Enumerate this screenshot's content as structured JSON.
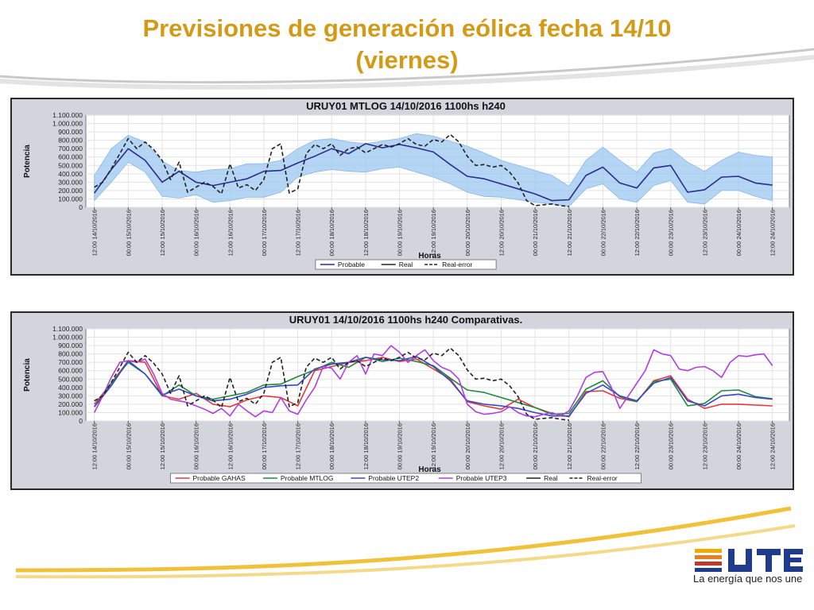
{
  "slide": {
    "title_line1": "Previsiones de generación eólica fecha 14/10",
    "title_line2": "(viernes)",
    "tagline": "La energía que nos une",
    "accent": "#d49a16"
  },
  "chart_data": [
    {
      "type": "line",
      "title": "URUY01  MTLOG  14/10/2016  1100hs    h240",
      "xlabel": "Horas",
      "ylabel": "Potencia",
      "ylim": [
        0,
        1100000
      ],
      "yticks": [
        "0",
        "100.000",
        "200.000",
        "300.000",
        "400.000",
        "500.000",
        "600.000",
        "700.000",
        "800.000",
        "900.000",
        "1.000.000",
        "1.100.000"
      ],
      "x_range_hours": [
        -3,
        246
      ],
      "xticks": [
        "12:00 14/10/2016",
        "00:00 15/10/2016",
        "12:00 15/10/2016",
        "00:00 16/10/2016",
        "12:00 16/10/2016",
        "00:00 17/10/2016",
        "12:00 17/10/2016",
        "00:00 18/10/2016",
        "12:00 18/10/2016",
        "00:00 19/10/2016",
        "12:00 19/10/2016",
        "00:00 20/10/2016",
        "12:00 20/10/2016",
        "00:00 21/10/2016",
        "12:00 21/10/2016",
        "00:00 22/10/2016",
        "12:00 22/10/2016",
        "00:00 23/10/2016",
        "12:00 23/10/2016",
        "00:00 24/10/2016",
        "12:00 24/10/2016"
      ],
      "legend": [
        "Probable",
        "Real",
        "Real-error"
      ],
      "legend_position": "bottom",
      "grid": true,
      "band": {
        "x": [
          0,
          6,
          12,
          18,
          24,
          30,
          36,
          42,
          48,
          54,
          60,
          66,
          72,
          78,
          84,
          90,
          96,
          102,
          108,
          114,
          120,
          126,
          132,
          138,
          144,
          150,
          156,
          162,
          168,
          174,
          180,
          186,
          192,
          198,
          204,
          210,
          216,
          222,
          228,
          234,
          240
        ],
        "upper": [
          380,
          700,
          860,
          780,
          550,
          440,
          420,
          450,
          460,
          520,
          520,
          560,
          700,
          800,
          820,
          780,
          760,
          790,
          820,
          880,
          850,
          790,
          730,
          650,
          560,
          500,
          440,
          380,
          250,
          560,
          720,
          560,
          420,
          650,
          700,
          540,
          430,
          560,
          660,
          620,
          600
        ],
        "lower": [
          80,
          300,
          540,
          420,
          130,
          110,
          150,
          60,
          80,
          120,
          120,
          180,
          360,
          420,
          450,
          430,
          420,
          460,
          480,
          420,
          360,
          280,
          180,
          130,
          120,
          90,
          60,
          40,
          10,
          220,
          280,
          100,
          60,
          260,
          320,
          60,
          40,
          200,
          200,
          130,
          80
        ]
      },
      "series": [
        {
          "name": "Probable",
          "color": "#2c2c8c",
          "dash": "",
          "x": [
            0,
            6,
            12,
            18,
            24,
            30,
            36,
            42,
            48,
            54,
            60,
            66,
            72,
            78,
            84,
            90,
            96,
            102,
            108,
            114,
            120,
            126,
            132,
            138,
            144,
            150,
            156,
            162,
            168,
            174,
            180,
            186,
            192,
            198,
            204,
            210,
            216,
            222,
            228,
            234,
            240
          ],
          "values": [
            170,
            450,
            700,
            560,
            300,
            430,
            300,
            260,
            300,
            340,
            430,
            440,
            530,
            610,
            700,
            640,
            760,
            710,
            750,
            710,
            660,
            510,
            370,
            340,
            280,
            220,
            160,
            80,
            90,
            380,
            480,
            290,
            230,
            470,
            500,
            180,
            210,
            360,
            370,
            290,
            265
          ]
        },
        {
          "name": "Real",
          "color": "#222222",
          "dash": "5,3",
          "x": [
            0,
            3,
            6,
            9,
            12,
            15,
            18,
            21,
            24,
            27,
            30,
            33,
            36,
            39,
            42,
            45,
            48,
            51,
            54,
            57,
            60,
            63,
            66,
            69,
            72,
            75,
            78,
            81,
            84,
            87,
            90,
            93,
            96,
            99,
            102,
            105,
            108,
            111,
            114,
            117,
            120,
            123,
            126,
            129,
            132,
            135,
            138,
            141,
            144,
            147,
            150,
            153,
            156,
            159,
            162,
            165,
            168
          ],
          "values": [
            240,
            300,
            460,
            640,
            820,
            700,
            780,
            690,
            560,
            330,
            540,
            180,
            240,
            300,
            250,
            160,
            520,
            230,
            270,
            200,
            330,
            700,
            760,
            170,
            220,
            640,
            750,
            700,
            760,
            620,
            700,
            720,
            650,
            700,
            750,
            720,
            760,
            820,
            750,
            730,
            810,
            780,
            870,
            780,
            610,
            500,
            510,
            480,
            500,
            420,
            290,
            80,
            20,
            30,
            40,
            20,
            10
          ]
        }
      ]
    },
    {
      "type": "line",
      "title": "URUY01  14/10/2016  1100hs    h240  Comparativas.",
      "xlabel": "Horas",
      "ylabel": "Potencia",
      "ylim": [
        0,
        1100000
      ],
      "yticks": [
        "0",
        "100.000",
        "200.000",
        "300.000",
        "400.000",
        "500.000",
        "600.000",
        "700.000",
        "800.000",
        "900.000",
        "1.000.000",
        "1.100.000"
      ],
      "x_range_hours": [
        -3,
        246
      ],
      "xticks": [
        "12:00 14/10/2016",
        "00:00 15/10/2016",
        "12:00 15/10/2016",
        "00:00 16/10/2016",
        "12:00 16/10/2016",
        "00:00 17/10/2016",
        "12:00 17/10/2016",
        "00:00 18/10/2016",
        "12:00 18/10/2016",
        "00:00 19/10/2016",
        "12:00 19/10/2016",
        "00:00 20/10/2016",
        "12:00 20/10/2016",
        "00:00 21/10/2016",
        "12:00 21/10/2016",
        "00:00 22/10/2016",
        "12:00 22/10/2016",
        "00:00 23/10/2016",
        "12:00 23/10/2016",
        "00:00 24/10/2016",
        "12:00 24/10/2016"
      ],
      "legend": [
        "Probable GAHAS",
        "Probable MTLOG",
        "Probable UTEP2",
        "Probable UTEP3",
        "Real",
        "Real-error"
      ],
      "legend_position": "bottom",
      "grid": true,
      "series": [
        {
          "name": "Probable GAHAS",
          "color": "#e03a3a",
          "dash": "",
          "x": [
            0,
            6,
            12,
            18,
            24,
            30,
            36,
            42,
            48,
            54,
            60,
            66,
            72,
            78,
            84,
            90,
            96,
            102,
            108,
            114,
            120,
            126,
            132,
            138,
            144,
            150,
            156,
            162,
            168,
            174,
            180,
            186,
            192,
            198,
            204,
            210,
            216,
            222,
            228,
            234,
            240
          ],
          "values": [
            200,
            450,
            720,
            700,
            300,
            260,
            330,
            200,
            170,
            250,
            300,
            280,
            180,
            600,
            650,
            700,
            720,
            760,
            710,
            740,
            620,
            500,
            230,
            180,
            140,
            260,
            160,
            90,
            50,
            350,
            360,
            270,
            230,
            480,
            540,
            260,
            150,
            200,
            200,
            190,
            180
          ]
        },
        {
          "name": "Probable MTLOG",
          "color": "#1f8a3a",
          "dash": "",
          "x": [
            0,
            6,
            12,
            18,
            24,
            30,
            36,
            42,
            48,
            54,
            60,
            66,
            72,
            78,
            84,
            90,
            96,
            102,
            108,
            114,
            120,
            126,
            132,
            138,
            144,
            150,
            156,
            162,
            168,
            174,
            180,
            186,
            192,
            198,
            204,
            210,
            216,
            222,
            228,
            234,
            240
          ],
          "values": [
            170,
            450,
            700,
            560,
            300,
            430,
            300,
            260,
            300,
            340,
            430,
            440,
            530,
            610,
            700,
            640,
            760,
            710,
            750,
            710,
            660,
            510,
            370,
            340,
            280,
            220,
            160,
            80,
            90,
            380,
            480,
            290,
            230,
            470,
            500,
            180,
            210,
            360,
            370,
            290,
            265
          ]
        },
        {
          "name": "Probable UTEP2",
          "color": "#3a46c8",
          "dash": "",
          "x": [
            0,
            6,
            12,
            18,
            24,
            30,
            36,
            42,
            48,
            54,
            60,
            66,
            72,
            78,
            84,
            90,
            96,
            102,
            108,
            114,
            120,
            126,
            132,
            138,
            144,
            150,
            156,
            162,
            168,
            174,
            180,
            186,
            192,
            198,
            204,
            210,
            216,
            222,
            228,
            234,
            240
          ],
          "values": [
            170,
            420,
            720,
            560,
            310,
            380,
            300,
            240,
            260,
            320,
            400,
            420,
            430,
            620,
            680,
            700,
            760,
            730,
            720,
            770,
            650,
            480,
            240,
            200,
            180,
            150,
            100,
            60,
            60,
            330,
            430,
            300,
            240,
            450,
            520,
            240,
            180,
            300,
            320,
            280,
            260
          ]
        },
        {
          "name": "Probable UTEP3",
          "color": "#b03ee0",
          "dash": "",
          "x": [
            0,
            3,
            6,
            9,
            12,
            15,
            18,
            21,
            24,
            27,
            30,
            33,
            36,
            39,
            42,
            45,
            48,
            51,
            54,
            57,
            60,
            63,
            66,
            69,
            72,
            75,
            78,
            81,
            84,
            87,
            90,
            93,
            96,
            99,
            102,
            105,
            108,
            111,
            114,
            117,
            120,
            123,
            126,
            129,
            132,
            135,
            138,
            141,
            144,
            147,
            150,
            153,
            156,
            159,
            162,
            165,
            168,
            171,
            174,
            177,
            180,
            183,
            186,
            189,
            192,
            195,
            198,
            201,
            204,
            207,
            210,
            213,
            216,
            219,
            222,
            225,
            228,
            231,
            234,
            237,
            240
          ],
          "values": [
            100,
            300,
            520,
            700,
            720,
            700,
            740,
            560,
            330,
            260,
            240,
            220,
            180,
            140,
            90,
            150,
            60,
            200,
            120,
            50,
            120,
            100,
            280,
            120,
            80,
            250,
            400,
            650,
            630,
            500,
            700,
            780,
            560,
            800,
            780,
            900,
            820,
            700,
            780,
            850,
            720,
            640,
            600,
            500,
            200,
            110,
            80,
            90,
            110,
            170,
            100,
            60,
            50,
            80,
            100,
            60,
            120,
            300,
            520,
            580,
            590,
            400,
            150,
            300,
            450,
            600,
            850,
            800,
            780,
            620,
            600,
            640,
            650,
            600,
            520,
            700,
            780,
            770,
            790,
            800,
            660
          ]
        },
        {
          "name": "Real",
          "color": "#222222",
          "dash": "5,3",
          "x": [
            0,
            3,
            6,
            9,
            12,
            15,
            18,
            21,
            24,
            27,
            30,
            33,
            36,
            39,
            42,
            45,
            48,
            51,
            54,
            57,
            60,
            63,
            66,
            69,
            72,
            75,
            78,
            81,
            84,
            87,
            90,
            93,
            96,
            99,
            102,
            105,
            108,
            111,
            114,
            117,
            120,
            123,
            126,
            129,
            132,
            135,
            138,
            141,
            144,
            147,
            150,
            153,
            156,
            159,
            162,
            165,
            168
          ],
          "values": [
            240,
            300,
            460,
            640,
            820,
            700,
            780,
            690,
            560,
            330,
            540,
            180,
            240,
            300,
            250,
            160,
            520,
            230,
            270,
            200,
            330,
            700,
            760,
            170,
            220,
            640,
            750,
            700,
            760,
            620,
            700,
            720,
            650,
            700,
            750,
            720,
            760,
            820,
            750,
            730,
            810,
            780,
            870,
            780,
            610,
            500,
            510,
            480,
            500,
            420,
            290,
            80,
            20,
            30,
            40,
            20,
            10
          ]
        }
      ]
    }
  ]
}
